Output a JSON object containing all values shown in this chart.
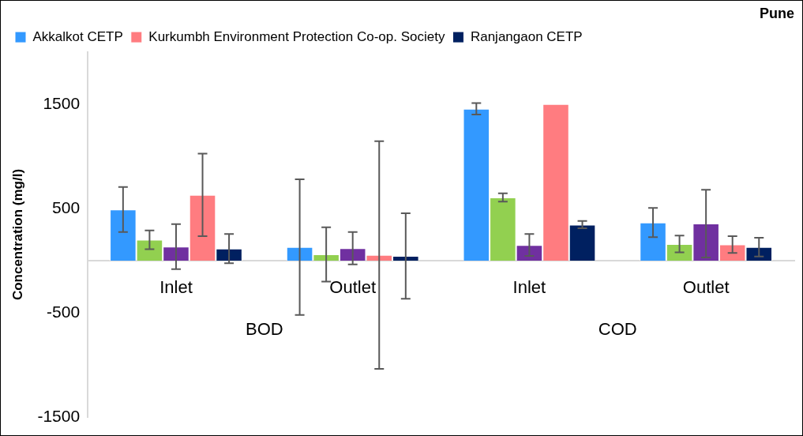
{
  "chart_data": {
    "type": "bar",
    "title": "Pune",
    "ylabel": "Concentration (mg/l)",
    "categories": [
      "Inlet",
      "Outlet",
      "Inlet",
      "Outlet"
    ],
    "annotations": [
      "BOD",
      "COD"
    ],
    "series": [
      {
        "name": "Akkalkot CETP",
        "color": "#3399ff",
        "values": [
          490,
          130,
          1455,
          365
        ],
        "errors": [
          215,
          650,
          55,
          140
        ]
      },
      {
        "color": "#92d050",
        "values": [
          200,
          60,
          605,
          160
        ],
        "errors": [
          90,
          260,
          40,
          80
        ]
      },
      {
        "color": "#7030a0",
        "values": [
          135,
          120,
          150,
          355
        ],
        "errors": [
          215,
          155,
          105,
          325
        ]
      },
      {
        "name": "Kurkumbh Environment Protection Co-op. Society",
        "color": "#ff7c80",
        "values": [
          630,
          55,
          1500,
          155
        ],
        "errors": [
          395,
          1090,
          null,
          80
        ]
      },
      {
        "name": "Ranjangaon CETP",
        "color": "#002060",
        "values": [
          115,
          45,
          345,
          130
        ],
        "errors": [
          140,
          410,
          35,
          90
        ]
      }
    ],
    "ylim": [
      -1500,
      2000
    ],
    "yticks": [
      -1500,
      -500,
      500,
      1500
    ],
    "grid": false,
    "legend": "top"
  }
}
